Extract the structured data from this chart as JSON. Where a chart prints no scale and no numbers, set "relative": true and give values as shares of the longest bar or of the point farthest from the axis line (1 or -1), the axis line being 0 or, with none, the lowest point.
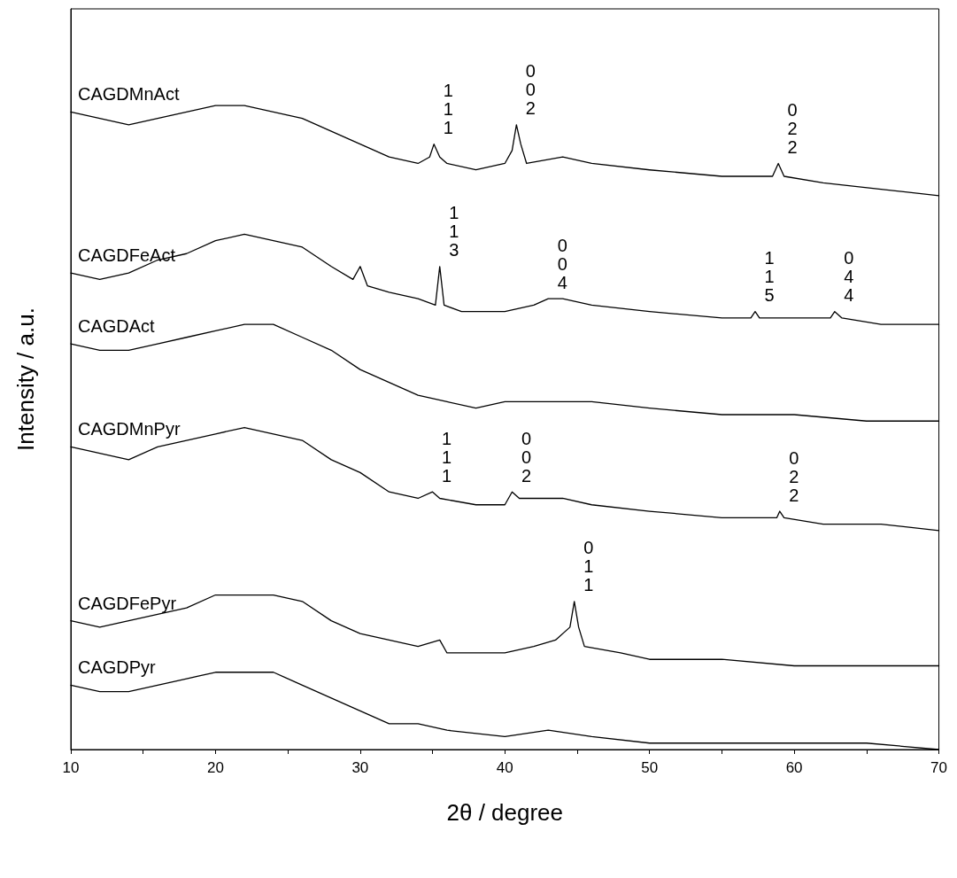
{
  "chart_data": {
    "type": "line",
    "relative": true,
    "xlabel": "2θ / degree",
    "ylabel": "Intensity / a.u.",
    "xlim": [
      10,
      70
    ],
    "xticks": [
      10,
      20,
      30,
      40,
      50,
      60,
      70
    ],
    "grid": false,
    "legend": false,
    "marker": "none",
    "line_style": "solid",
    "series": [
      {
        "name": "CAGDMnAct",
        "color": "#000000",
        "x": [
          10,
          12,
          14,
          16,
          18,
          20,
          22,
          24,
          26,
          28,
          30,
          32,
          34,
          34.8,
          35.1,
          35.5,
          36,
          38,
          40,
          40.5,
          40.8,
          41.1,
          41.5,
          44,
          46,
          50,
          55,
          58.5,
          58.9,
          59.3,
          62,
          66,
          70
        ],
        "values": [
          0.99,
          0.98,
          0.97,
          0.98,
          0.99,
          1.0,
          1.0,
          0.99,
          0.98,
          0.96,
          0.94,
          0.92,
          0.91,
          0.92,
          0.94,
          0.92,
          0.91,
          0.9,
          0.91,
          0.93,
          0.97,
          0.94,
          0.91,
          0.92,
          0.91,
          0.9,
          0.89,
          0.89,
          0.91,
          0.89,
          0.88,
          0.87,
          0.86
        ]
      },
      {
        "name": "CAGDFeAct",
        "color": "#000000",
        "x": [
          10,
          12,
          14,
          16,
          18,
          20,
          22,
          24,
          26,
          28,
          29.5,
          30,
          30.5,
          32,
          34,
          35.2,
          35.5,
          35.8,
          37,
          40,
          42,
          43,
          44,
          46,
          50,
          55,
          57,
          57.3,
          57.6,
          60,
          62.5,
          62.8,
          63.3,
          66,
          70
        ],
        "values": [
          0.74,
          0.73,
          0.74,
          0.76,
          0.77,
          0.79,
          0.8,
          0.79,
          0.78,
          0.75,
          0.73,
          0.75,
          0.72,
          0.71,
          0.7,
          0.69,
          0.75,
          0.69,
          0.68,
          0.68,
          0.69,
          0.7,
          0.7,
          0.69,
          0.68,
          0.67,
          0.67,
          0.68,
          0.67,
          0.67,
          0.67,
          0.68,
          0.67,
          0.66,
          0.66
        ]
      },
      {
        "name": "CAGDAct",
        "color": "#000000",
        "x": [
          10,
          12,
          14,
          16,
          18,
          20,
          22,
          24,
          26,
          28,
          30,
          32,
          34,
          36,
          38,
          40,
          42,
          44,
          46,
          50,
          55,
          60,
          65,
          70
        ],
        "values": [
          0.63,
          0.62,
          0.62,
          0.63,
          0.64,
          0.65,
          0.66,
          0.66,
          0.64,
          0.62,
          0.59,
          0.57,
          0.55,
          0.54,
          0.53,
          0.54,
          0.54,
          0.54,
          0.54,
          0.53,
          0.52,
          0.52,
          0.51,
          0.51
        ]
      },
      {
        "name": "CAGDMnPyr",
        "color": "#000000",
        "x": [
          10,
          12,
          14,
          16,
          18,
          20,
          22,
          24,
          26,
          28,
          30,
          32,
          34,
          35,
          35.5,
          38,
          40,
          40.5,
          41,
          44,
          46,
          50,
          55,
          58.8,
          59,
          59.3,
          62,
          66,
          70
        ],
        "values": [
          0.47,
          0.46,
          0.45,
          0.47,
          0.48,
          0.49,
          0.5,
          0.49,
          0.48,
          0.45,
          0.43,
          0.4,
          0.39,
          0.4,
          0.39,
          0.38,
          0.38,
          0.4,
          0.39,
          0.39,
          0.38,
          0.37,
          0.36,
          0.36,
          0.37,
          0.36,
          0.35,
          0.35,
          0.34
        ]
      },
      {
        "name": "CAGDFePyr",
        "color": "#000000",
        "x": [
          10,
          12,
          14,
          16,
          18,
          20,
          22,
          24,
          26,
          28,
          30,
          32,
          34,
          35.5,
          36,
          38,
          40,
          42,
          43.5,
          44.5,
          44.8,
          45.1,
          45.5,
          48,
          50,
          55,
          60,
          65,
          70
        ],
        "values": [
          0.2,
          0.19,
          0.2,
          0.21,
          0.22,
          0.24,
          0.24,
          0.24,
          0.23,
          0.2,
          0.18,
          0.17,
          0.16,
          0.17,
          0.15,
          0.15,
          0.15,
          0.16,
          0.17,
          0.19,
          0.23,
          0.19,
          0.16,
          0.15,
          0.14,
          0.14,
          0.13,
          0.13,
          0.13
        ]
      },
      {
        "name": "CAGDPyr",
        "color": "#000000",
        "x": [
          10,
          12,
          14,
          16,
          18,
          20,
          22,
          24,
          26,
          28,
          30,
          32,
          34,
          36,
          40,
          43,
          46,
          50,
          55,
          60,
          65,
          70
        ],
        "values": [
          0.1,
          0.09,
          0.09,
          0.1,
          0.11,
          0.12,
          0.12,
          0.12,
          0.1,
          0.08,
          0.06,
          0.04,
          0.04,
          0.03,
          0.02,
          0.03,
          0.02,
          0.01,
          0.01,
          0.01,
          0.01,
          0.0
        ]
      }
    ],
    "annotations": [
      {
        "text": "111",
        "x": 35.1,
        "y": 0.94
      },
      {
        "text": "002",
        "x": 40.8,
        "y": 0.97
      },
      {
        "text": "022",
        "x": 58.9,
        "y": 0.91
      },
      {
        "text": "113",
        "x": 35.5,
        "y": 0.75
      },
      {
        "text": "004",
        "x": 43,
        "y": 0.7
      },
      {
        "text": "115",
        "x": 57.3,
        "y": 0.68
      },
      {
        "text": "044",
        "x": 62.8,
        "y": 0.68
      },
      {
        "text": "111",
        "x": 35,
        "y": 0.4
      },
      {
        "text": "002",
        "x": 40.5,
        "y": 0.4
      },
      {
        "text": "022",
        "x": 59,
        "y": 0.37
      },
      {
        "text": "011",
        "x": 44.8,
        "y": 0.23
      }
    ]
  }
}
